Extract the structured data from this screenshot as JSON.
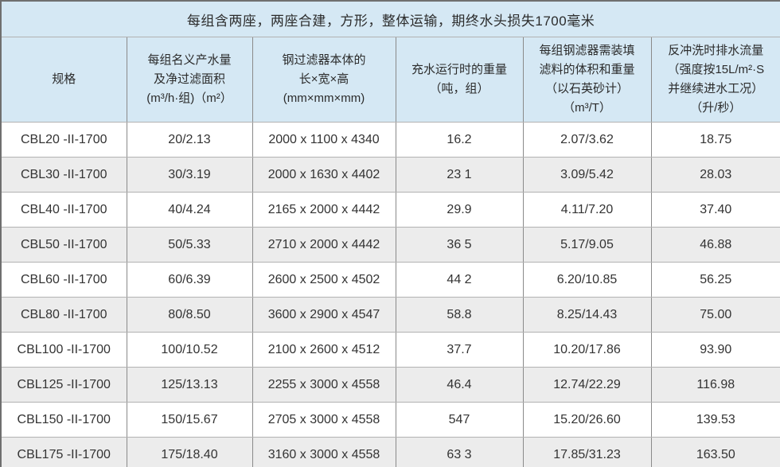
{
  "table": {
    "title": "每组含两座，两座合建，方形，整体运输，期终水头损失1700毫米",
    "columns": [
      {
        "lines": [
          "规格"
        ]
      },
      {
        "lines": [
          "每组名义产水量",
          "及净过滤面积",
          "(m³/h·组)（m²）"
        ]
      },
      {
        "lines": [
          "钢过滤器本体的",
          "长×宽×高",
          "(mm×mm×mm)"
        ]
      },
      {
        "lines": [
          "充水运行时的重量",
          "（吨，组）"
        ]
      },
      {
        "lines": [
          "每组钢滤器需装填",
          "滤料的体积和重量",
          "（以石英砂计）",
          "（m³/T）"
        ]
      },
      {
        "lines": [
          "反冲洗时排水流量",
          "（强度按15L/m²·S",
          "并继续进水工况）",
          "（升/秒）"
        ]
      }
    ],
    "rows": [
      [
        "CBL20 -II-1700",
        "20/2.13",
        "2000 x 1100 x 4340",
        "16.2",
        "2.07/3.62",
        "18.75"
      ],
      [
        "CBL30 -II-1700",
        "30/3.19",
        "2000 x 1630 x 4402",
        "23 1",
        "3.09/5.42",
        "28.03"
      ],
      [
        "CBL40 -II-1700",
        "40/4.24",
        "2165 x 2000 x 4442",
        "29.9",
        "4.11/7.20",
        "37.40"
      ],
      [
        "CBL50 -II-1700",
        "50/5.33",
        "2710 x 2000 x 4442",
        "36 5",
        "5.17/9.05",
        "46.88"
      ],
      [
        "CBL60 -II-1700",
        "60/6.39",
        "2600 x 2500 x 4502",
        "44 2",
        "6.20/10.85",
        "56.25"
      ],
      [
        "CBL80 -II-1700",
        "80/8.50",
        "3600 x 2900 x 4547",
        "58.8",
        "8.25/14.43",
        "75.00"
      ],
      [
        "CBL100 -II-1700",
        "100/10.52",
        "2100 x 2600 x 4512",
        "37.7",
        "10.20/17.86",
        "93.90"
      ],
      [
        "CBL125 -II-1700",
        "125/13.13",
        "2255 x 3000 x 4558",
        "46.4",
        "12.74/22.29",
        "116.98"
      ],
      [
        "CBL150 -II-1700",
        "150/15.67",
        "2705 x 3000 x 4558",
        "547",
        "15.20/26.60",
        "139.53"
      ],
      [
        "CBL175 -II-1700",
        "175/18.40",
        "3160 x 3000 x 4558",
        "63 3",
        "17.85/31.23",
        "163.50"
      ]
    ],
    "colors": {
      "header_bg": "#d5e8f4",
      "row_bg": "#ffffff",
      "row_alt_bg": "#ececec",
      "border_vertical": "#8a8a8a",
      "border_horizontal": "#b2b2b2",
      "outer_border": "#6f6f6f",
      "text": "#333333"
    }
  }
}
